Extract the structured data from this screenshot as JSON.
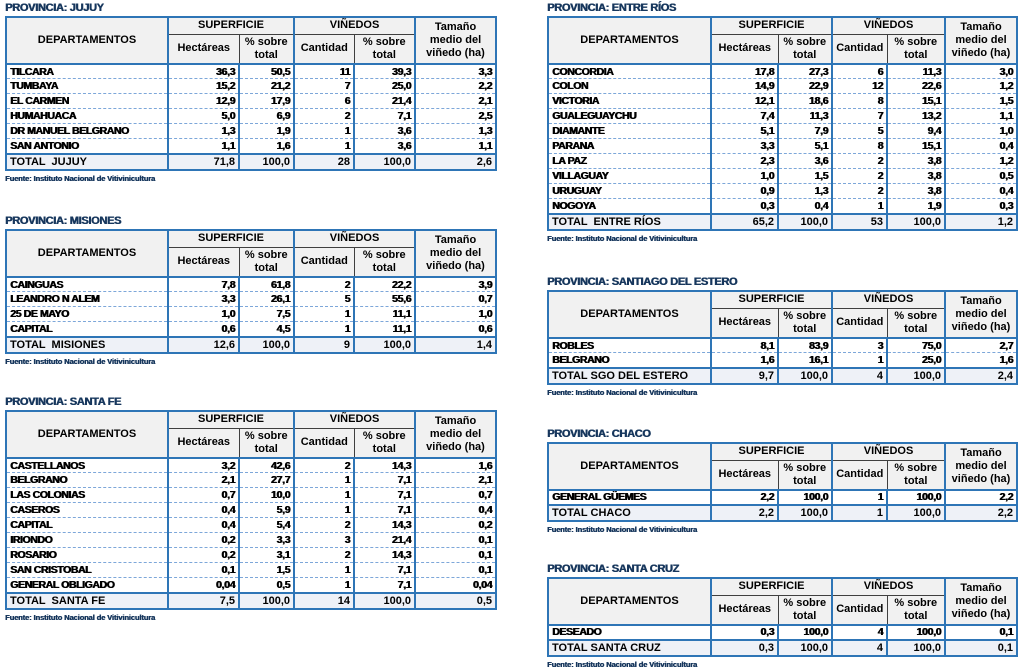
{
  "source_note": "Fuente: Instituto Nacional de Vitivinicultura",
  "columns": {
    "departamentos": "DEPARTAMENTOS",
    "superficie": "SUPERFICIE",
    "vinedos": "VIÑEDOS",
    "hectareas": "Hectáreas",
    "pct_sobre_total": "% sobre total",
    "cantidad": "Cantidad",
    "tamano": "Tamaño medio del viñedo (ha)"
  },
  "colors": {
    "border_blue": "#2e75b6",
    "title_navy": "#17375d",
    "header_bg": "#f1f1f1",
    "total_row_bg": "#eef1f7"
  },
  "tables": [
    {
      "title": "PROVINCIA: JUJUY",
      "rows": [
        [
          "TILCARA",
          "36,3",
          "50,5",
          "11",
          "39,3",
          "3,3"
        ],
        [
          "TUMBAYA",
          "15,2",
          "21,2",
          "7",
          "25,0",
          "2,2"
        ],
        [
          "EL CARMEN",
          "12,9",
          "17,9",
          "6",
          "21,4",
          "2,1"
        ],
        [
          "HUMAHUACA",
          "5,0",
          "6,9",
          "2",
          "7,1",
          "2,5"
        ],
        [
          "DR MANUEL BELGRANO",
          "1,3",
          "1,9",
          "1",
          "3,6",
          "1,3"
        ],
        [
          "SAN ANTONIO",
          "1,1",
          "1,6",
          "1",
          "3,6",
          "1,1"
        ]
      ],
      "total": [
        "TOTAL  JUJUY",
        "71,8",
        "100,0",
        "28",
        "100,0",
        "2,6"
      ]
    },
    {
      "title": "PROVINCIA: MISIONES",
      "rows": [
        [
          "CAINGUAS",
          "7,8",
          "61,8",
          "2",
          "22,2",
          "3,9"
        ],
        [
          "LEANDRO N ALEM",
          "3,3",
          "26,1",
          "5",
          "55,6",
          "0,7"
        ],
        [
          "25 DE MAYO",
          "1,0",
          "7,5",
          "1",
          "11,1",
          "1,0"
        ],
        [
          "CAPITAL",
          "0,6",
          "4,5",
          "1",
          "11,1",
          "0,6"
        ]
      ],
      "total": [
        "TOTAL  MISIONES",
        "12,6",
        "100,0",
        "9",
        "100,0",
        "1,4"
      ]
    },
    {
      "title": "PROVINCIA: SANTA FE",
      "rows": [
        [
          "CASTELLANOS",
          "3,2",
          "42,6",
          "2",
          "14,3",
          "1,6"
        ],
        [
          "BELGRANO",
          "2,1",
          "27,7",
          "1",
          "7,1",
          "2,1"
        ],
        [
          "LAS COLONIAS",
          "0,7",
          "10,0",
          "1",
          "7,1",
          "0,7"
        ],
        [
          "CASEROS",
          "0,4",
          "5,9",
          "1",
          "7,1",
          "0,4"
        ],
        [
          "CAPITAL",
          "0,4",
          "5,4",
          "2",
          "14,3",
          "0,2"
        ],
        [
          "IRIONDO",
          "0,2",
          "3,3",
          "3",
          "21,4",
          "0,1"
        ],
        [
          "ROSARIO",
          "0,2",
          "3,1",
          "2",
          "14,3",
          "0,1"
        ],
        [
          "SAN CRISTOBAL",
          "0,1",
          "1,5",
          "1",
          "7,1",
          "0,1"
        ],
        [
          "GENERAL OBLIGADO",
          "0,04",
          "0,5",
          "1",
          "7,1",
          "0,04"
        ]
      ],
      "total": [
        "TOTAL  SANTA FE",
        "7,5",
        "100,0",
        "14",
        "100,0",
        "0,5"
      ]
    },
    {
      "title": "PROVINCIA: ENTRE RÍOS",
      "rows": [
        [
          "CONCORDIA",
          "17,8",
          "27,3",
          "6",
          "11,3",
          "3,0"
        ],
        [
          "COLON",
          "14,9",
          "22,9",
          "12",
          "22,6",
          "1,2"
        ],
        [
          "VICTORIA",
          "12,1",
          "18,6",
          "8",
          "15,1",
          "1,5"
        ],
        [
          "GUALEGUAYCHU",
          "7,4",
          "11,3",
          "7",
          "13,2",
          "1,1"
        ],
        [
          "DIAMANTE",
          "5,1",
          "7,9",
          "5",
          "9,4",
          "1,0"
        ],
        [
          "PARANA",
          "3,3",
          "5,1",
          "8",
          "15,1",
          "0,4"
        ],
        [
          "LA PAZ",
          "2,3",
          "3,6",
          "2",
          "3,8",
          "1,2"
        ],
        [
          "VILLAGUAY",
          "1,0",
          "1,5",
          "2",
          "3,8",
          "0,5"
        ],
        [
          "URUGUAY",
          "0,9",
          "1,3",
          "2",
          "3,8",
          "0,4"
        ],
        [
          "NOGOYA",
          "0,3",
          "0,4",
          "1",
          "1,9",
          "0,3"
        ]
      ],
      "total": [
        "TOTAL  ENTRE RÍOS",
        "65,2",
        "100,0",
        "53",
        "100,0",
        "1,2"
      ]
    },
    {
      "title": "PROVINCIA: SANTIAGO DEL ESTERO",
      "rows": [
        [
          "ROBLES",
          "8,1",
          "83,9",
          "3",
          "75,0",
          "2,7"
        ],
        [
          "BELGRANO",
          "1,6",
          "16,1",
          "1",
          "25,0",
          "1,6"
        ]
      ],
      "total": [
        "TOTAL SGO DEL ESTERO",
        "9,7",
        "100,0",
        "4",
        "100,0",
        "2,4"
      ]
    },
    {
      "title": "PROVINCIA: CHACO",
      "rows": [
        [
          "GENERAL GÜEMES",
          "2,2",
          "100,0",
          "1",
          "100,0",
          "2,2"
        ]
      ],
      "total": [
        "TOTAL CHACO",
        "2,2",
        "100,0",
        "1",
        "100,0",
        "2,2"
      ]
    },
    {
      "title": "PROVINCIA: SANTA CRUZ",
      "rows": [
        [
          "DESEADO",
          "0,3",
          "100,0",
          "4",
          "100,0",
          "0,1"
        ]
      ],
      "total": [
        "TOTAL SANTA CRUZ",
        "0,3",
        "100,0",
        "4",
        "100,0",
        "0,1"
      ]
    }
  ]
}
